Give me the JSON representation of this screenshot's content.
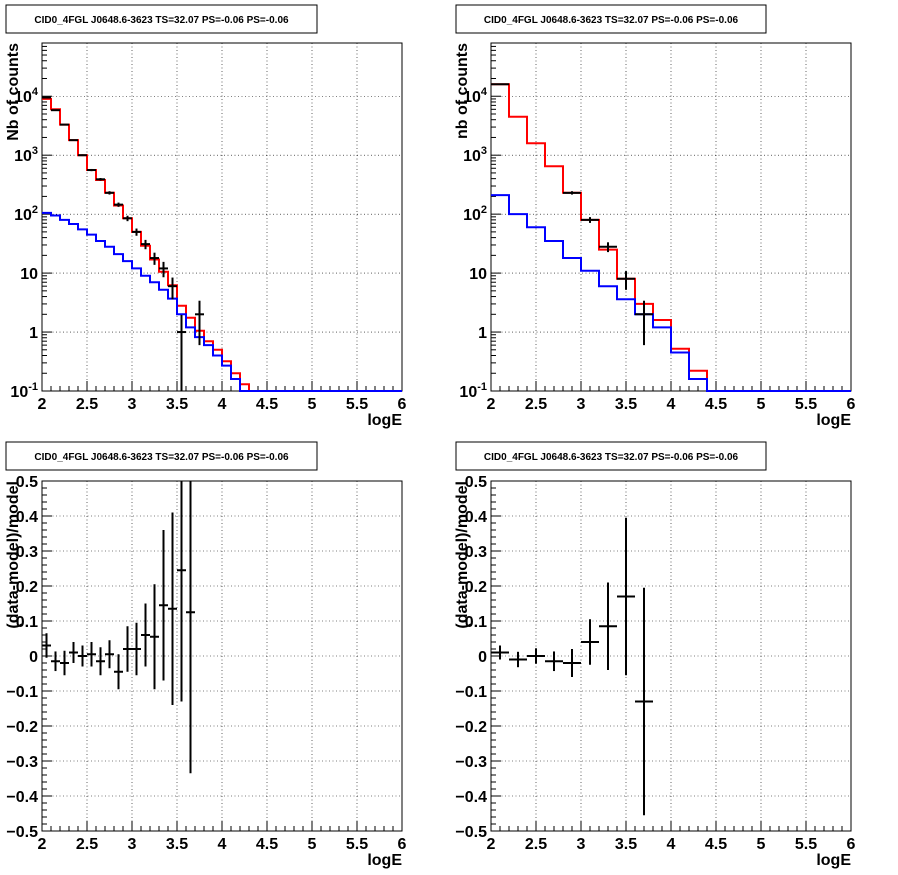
{
  "chart_data": [
    {
      "type": "histogram",
      "title": "CID0_4FGL J0648.6-3623 TS=32.07 PS=-0.06 PS=-0.06",
      "xlabel": "logE",
      "ylabel": "Nb of counts",
      "xlim": [
        2,
        6
      ],
      "ylim": [
        0.1,
        80000
      ],
      "yscale": "log",
      "grid": true,
      "x_ticks": [
        "2",
        "2.5",
        "3",
        "3.5",
        "4",
        "4.5",
        "5",
        "5.5",
        "6"
      ],
      "y_ticks": [
        "10^-1",
        "1",
        "10",
        "10^2",
        "10^3",
        "10^4"
      ],
      "bin_edges": [
        2.0,
        2.1,
        2.2,
        2.3,
        2.4,
        2.5,
        2.6,
        2.7,
        2.8,
        2.9,
        3.0,
        3.1,
        3.2,
        3.3,
        3.4,
        3.5,
        3.6,
        3.7,
        3.8,
        3.9,
        4.0,
        4.1,
        4.2,
        4.3,
        4.4,
        4.5,
        4.6,
        4.7,
        4.8,
        4.9,
        5.0,
        5.1,
        5.2,
        5.3,
        5.4,
        5.5,
        5.6,
        5.7,
        5.8,
        5.9,
        6.0
      ],
      "series": [
        {
          "color": "#ff0000",
          "values": [
            9000,
            6000,
            3300,
            1800,
            1000,
            560,
            380,
            230,
            140,
            85,
            50,
            29,
            17,
            10.5,
            6.2,
            2.8,
            1.75,
            1.05,
            0.7,
            0.5,
            0.32,
            0.2,
            0.13,
            0.1,
            0.1,
            0.1,
            0.1,
            0.1,
            0.1,
            0.1,
            0.1,
            0.1,
            0.1,
            0.1,
            0.1,
            0.1,
            0.1,
            0.1,
            0.1,
            0.1
          ]
        },
        {
          "color": "#0000ff",
          "values": [
            105,
            95,
            80,
            68,
            55,
            45,
            35,
            28,
            21,
            16,
            12,
            9,
            7,
            5.2,
            3.7,
            2.0,
            1.2,
            0.82,
            0.6,
            0.4,
            0.27,
            0.16,
            0.1,
            0.1,
            0.1,
            0.1,
            0.1,
            0.1,
            0.1,
            0.1,
            0.1,
            0.1,
            0.1,
            0.1,
            0.1,
            0.1,
            0.1,
            0.1,
            0.1,
            0.1
          ]
        }
      ],
      "data_points": [
        {
          "x": 2.05,
          "y": 9500,
          "err": 100
        },
        {
          "x": 2.15,
          "y": 5800,
          "err": 80
        },
        {
          "x": 2.25,
          "y": 3300,
          "err": 60
        },
        {
          "x": 2.35,
          "y": 1800,
          "err": 45
        },
        {
          "x": 2.45,
          "y": 1000,
          "err": 32
        },
        {
          "x": 2.55,
          "y": 560,
          "err": 24
        },
        {
          "x": 2.65,
          "y": 390,
          "err": 20
        },
        {
          "x": 2.75,
          "y": 230,
          "err": 15
        },
        {
          "x": 2.85,
          "y": 145,
          "err": 12
        },
        {
          "x": 2.95,
          "y": 85,
          "err": 9
        },
        {
          "x": 3.05,
          "y": 50,
          "err": 7
        },
        {
          "x": 3.15,
          "y": 31,
          "err": 5.6
        },
        {
          "x": 3.25,
          "y": 18,
          "err": 4.2
        },
        {
          "x": 3.35,
          "y": 12,
          "err": 3.5
        },
        {
          "x": 3.45,
          "y": 6.0,
          "err": 2.4
        },
        {
          "x": 3.55,
          "y": 1.0,
          "err": 0.95
        },
        {
          "x": 3.75,
          "y": 2.0,
          "err": 1.4
        }
      ]
    },
    {
      "type": "histogram",
      "title": "CID0_4FGL J0648.6-3623 TS=32.07 PS=-0.06 PS=-0.06",
      "xlabel": "logE",
      "ylabel": "nb of counts",
      "xlim": [
        2,
        6
      ],
      "ylim": [
        0.1,
        80000
      ],
      "yscale": "log",
      "grid": true,
      "x_ticks": [
        "2",
        "2.5",
        "3",
        "3.5",
        "4",
        "4.5",
        "5",
        "5.5",
        "6"
      ],
      "y_ticks": [
        "10^-1",
        "1",
        "10",
        "10^2",
        "10^3",
        "10^4"
      ],
      "bin_edges": [
        2.0,
        2.2,
        2.4,
        2.6,
        2.8,
        3.0,
        3.2,
        3.4,
        3.6,
        3.8,
        4.0,
        4.2,
        4.4,
        4.6,
        4.8,
        5.0,
        5.2,
        5.4,
        5.6,
        5.8,
        6.0
      ],
      "series": [
        {
          "color": "#ff0000",
          "values": [
            16000,
            4500,
            1600,
            650,
            230,
            80,
            25,
            8,
            3,
            1.6,
            0.52,
            0.22,
            0.1,
            0.1,
            0.1,
            0.1,
            0.1,
            0.1,
            0.1,
            0.1
          ]
        },
        {
          "color": "#0000ff",
          "values": [
            210,
            100,
            60,
            35,
            18,
            11,
            6,
            3.6,
            2.0,
            1.2,
            0.45,
            0.16,
            0.1,
            0.1,
            0.1,
            0.1,
            0.1,
            0.1,
            0.1,
            0.1
          ]
        }
      ],
      "data_points": [
        {
          "x": 2.1,
          "y": 16000,
          "err": 130
        },
        {
          "x": 2.9,
          "y": 230,
          "err": 15
        },
        {
          "x": 3.1,
          "y": 80,
          "err": 9
        },
        {
          "x": 3.3,
          "y": 28,
          "err": 5.3
        },
        {
          "x": 3.5,
          "y": 8,
          "err": 2.8
        },
        {
          "x": 3.7,
          "y": 2,
          "err": 1.4
        }
      ]
    },
    {
      "type": "scatter",
      "title": "CID0_4FGL J0648.6-3623 TS=32.07 PS=-0.06 PS=-0.06",
      "xlabel": "logE",
      "ylabel": "(data-model)/model",
      "xlim": [
        2,
        6
      ],
      "ylim": [
        -0.5,
        0.5
      ],
      "grid": true,
      "x_ticks": [
        "2",
        "2.5",
        "3",
        "3.5",
        "4",
        "4.5",
        "5",
        "5.5",
        "6"
      ],
      "y_ticks": [
        "-0.5",
        "-0.4",
        "-0.3",
        "-0.2",
        "-0.1",
        "0",
        "0.1",
        "0.2",
        "0.3",
        "0.4",
        "0.5"
      ],
      "x_halfwidth": 0.05,
      "points": [
        {
          "x": 2.05,
          "y": 0.03,
          "err": 0.035
        },
        {
          "x": 2.15,
          "y": -0.015,
          "err": 0.028
        },
        {
          "x": 2.25,
          "y": -0.02,
          "err": 0.035
        },
        {
          "x": 2.35,
          "y": 0.01,
          "err": 0.03
        },
        {
          "x": 2.45,
          "y": 0.0,
          "err": 0.03
        },
        {
          "x": 2.55,
          "y": 0.005,
          "err": 0.035
        },
        {
          "x": 2.65,
          "y": -0.015,
          "err": 0.04
        },
        {
          "x": 2.75,
          "y": 0.005,
          "err": 0.04
        },
        {
          "x": 2.85,
          "y": -0.045,
          "err": 0.05
        },
        {
          "x": 2.95,
          "y": 0.02,
          "err": 0.065
        },
        {
          "x": 3.05,
          "y": 0.02,
          "err": 0.075
        },
        {
          "x": 3.15,
          "y": 0.06,
          "err": 0.09
        },
        {
          "x": 3.25,
          "y": 0.055,
          "err": 0.15
        },
        {
          "x": 3.35,
          "y": 0.145,
          "err": 0.215
        },
        {
          "x": 3.45,
          "y": 0.135,
          "err": 0.275
        },
        {
          "x": 3.55,
          "y": 0.245,
          "err": 0.375
        },
        {
          "x": 3.65,
          "y": 0.125,
          "err": 0.46
        }
      ]
    },
    {
      "type": "scatter",
      "title": "CID0_4FGL J0648.6-3623 TS=32.07 PS=-0.06 PS=-0.06",
      "xlabel": "logE",
      "ylabel": "(data-model)/model",
      "xlim": [
        2,
        6
      ],
      "ylim": [
        -0.5,
        0.5
      ],
      "grid": true,
      "x_ticks": [
        "2",
        "2.5",
        "3",
        "3.5",
        "4",
        "4.5",
        "5",
        "5.5",
        "6"
      ],
      "y_ticks": [
        "-0.5",
        "-0.4",
        "-0.3",
        "-0.2",
        "-0.1",
        "0",
        "0.1",
        "0.2",
        "0.3",
        "0.4",
        "0.5"
      ],
      "x_halfwidth": 0.1,
      "points": [
        {
          "x": 2.1,
          "y": 0.01,
          "err": 0.02
        },
        {
          "x": 2.3,
          "y": -0.01,
          "err": 0.022
        },
        {
          "x": 2.5,
          "y": 0.0,
          "err": 0.022
        },
        {
          "x": 2.7,
          "y": -0.015,
          "err": 0.028
        },
        {
          "x": 2.9,
          "y": -0.02,
          "err": 0.04
        },
        {
          "x": 3.1,
          "y": 0.04,
          "err": 0.065
        },
        {
          "x": 3.3,
          "y": 0.085,
          "err": 0.125
        },
        {
          "x": 3.5,
          "y": 0.17,
          "err": 0.225
        },
        {
          "x": 3.7,
          "y": -0.13,
          "err": 0.325
        }
      ]
    }
  ]
}
